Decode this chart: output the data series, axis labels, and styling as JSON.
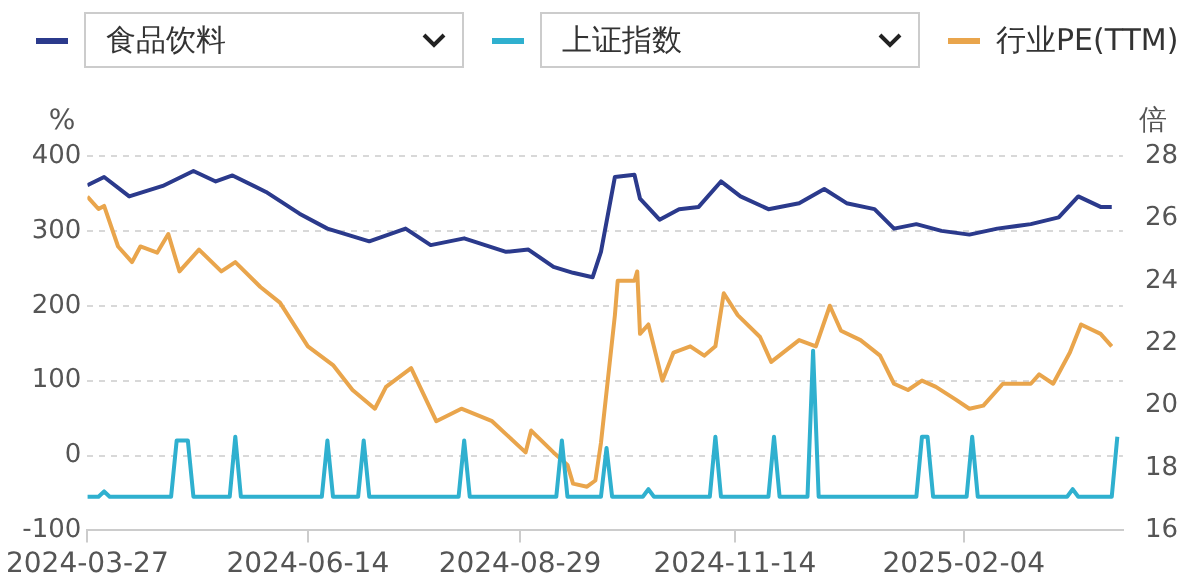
{
  "chart_data": {
    "type": "line",
    "ylabel": "%",
    "y2label": "倍",
    "xlim": [
      "2024-03-27",
      "2025-04-02"
    ],
    "xticks": [
      "2024-03-27",
      "2024-06-14",
      "2024-08-29",
      "2024-11-14",
      "2025-02-04"
    ],
    "ylim": [
      -100,
      400
    ],
    "yticks": [
      -100,
      0,
      100,
      200,
      300,
      400
    ],
    "y2lim": [
      16,
      28
    ],
    "y2ticks": [
      16,
      18,
      20,
      22,
      24,
      26,
      28
    ],
    "grid": "y",
    "legend": "top",
    "marker": "none",
    "line_style": "solid",
    "series": [
      {
        "name": "食品饮料",
        "color": "#2b3a8c",
        "x": [
          "2024-03-27",
          "2024-04-02",
          "2024-04-11",
          "2024-04-23",
          "2024-05-04",
          "2024-05-12",
          "2024-05-18",
          "2024-05-30",
          "2024-06-11",
          "2024-06-21",
          "2024-07-06",
          "2024-07-19",
          "2024-07-28",
          "2024-08-09",
          "2024-08-24",
          "2024-09-01",
          "2024-09-10",
          "2024-09-17",
          "2024-09-24",
          "2024-09-27",
          "2024-10-02",
          "2024-10-09",
          "2024-10-11",
          "2024-10-18",
          "2024-10-25",
          "2024-11-01",
          "2024-11-09",
          "2024-11-16",
          "2024-11-26",
          "2024-12-07",
          "2024-12-16",
          "2024-12-24",
          "2025-01-03",
          "2025-01-10",
          "2025-01-18",
          "2025-01-27",
          "2025-02-06",
          "2025-02-16",
          "2025-02-28",
          "2025-03-10",
          "2025-03-17",
          "2025-03-25",
          "2025-03-29"
        ],
        "values": [
          361,
          372,
          346,
          360,
          380,
          366,
          374,
          352,
          323,
          303,
          286,
          303,
          281,
          290,
          272,
          275,
          252,
          244,
          238,
          272,
          372,
          375,
          343,
          315,
          329,
          332,
          366,
          346,
          329,
          337,
          356,
          337,
          329,
          303,
          309,
          300,
          295,
          303,
          309,
          318,
          346,
          332,
          332
        ]
      },
      {
        "name": "上证指数",
        "color": "#2fb0cf",
        "x": [
          "2024-03-27",
          "2024-03-31",
          "2024-04-02",
          "2024-04-04",
          "2024-04-26",
          "2024-04-28",
          "2024-05-02",
          "2024-05-04",
          "2024-05-17",
          "2024-05-19",
          "2024-05-21",
          "2024-06-19",
          "2024-06-21",
          "2024-06-23",
          "2024-07-02",
          "2024-07-04",
          "2024-07-06",
          "2024-08-07",
          "2024-08-09",
          "2024-08-11",
          "2024-09-11",
          "2024-09-13",
          "2024-09-15",
          "2024-09-27",
          "2024-09-29",
          "2024-10-01",
          "2024-10-12",
          "2024-10-14",
          "2024-10-16",
          "2024-11-05",
          "2024-11-07",
          "2024-11-09",
          "2024-11-26",
          "2024-11-28",
          "2024-11-30",
          "2024-12-10",
          "2024-12-12",
          "2024-12-14",
          "2025-01-18",
          "2025-01-20",
          "2025-01-22",
          "2025-01-24",
          "2025-02-05",
          "2025-02-07",
          "2025-02-09",
          "2025-03-13",
          "2025-03-15",
          "2025-03-17",
          "2025-03-29",
          "2025-03-31"
        ],
        "values": [
          -55,
          -55,
          -48,
          -55,
          -55,
          20,
          20,
          -55,
          -55,
          25,
          -55,
          -55,
          20,
          -55,
          -55,
          20,
          -55,
          -55,
          20,
          -55,
          -55,
          20,
          -55,
          -55,
          10,
          -55,
          -55,
          -45,
          -55,
          -55,
          25,
          -55,
          -55,
          25,
          -55,
          -55,
          140,
          -55,
          -55,
          25,
          25,
          -55,
          -55,
          25,
          -55,
          -55,
          -45,
          -55,
          -55,
          25
        ]
      },
      {
        "name": "行业PE(TTM)",
        "color": "#e9a54c",
        "axis": "y2",
        "x": [
          "2024-03-27",
          "2024-03-31",
          "2024-04-02",
          "2024-04-07",
          "2024-04-12",
          "2024-04-15",
          "2024-04-21",
          "2024-04-25",
          "2024-04-29",
          "2024-05-06",
          "2024-05-14",
          "2024-05-19",
          "2024-05-28",
          "2024-06-04",
          "2024-06-14",
          "2024-06-23",
          "2024-06-30",
          "2024-07-08",
          "2024-07-12",
          "2024-07-21",
          "2024-07-30",
          "2024-08-08",
          "2024-08-19",
          "2024-08-31",
          "2024-09-02",
          "2024-09-10",
          "2024-09-15",
          "2024-09-17",
          "2024-09-22",
          "2024-09-25",
          "2024-09-27",
          "2024-10-02",
          "2024-10-03",
          "2024-10-09",
          "2024-10-10",
          "2024-10-11",
          "2024-10-14",
          "2024-10-19",
          "2024-10-23",
          "2024-10-29",
          "2024-11-03",
          "2024-11-07",
          "2024-11-10",
          "2024-11-15",
          "2024-11-23",
          "2024-11-27",
          "2024-12-07",
          "2024-12-13",
          "2024-12-18",
          "2024-12-22",
          "2024-12-29",
          "2025-01-05",
          "2025-01-10",
          "2025-01-15",
          "2025-01-20",
          "2025-01-25",
          "2025-02-01",
          "2025-02-06",
          "2025-02-11",
          "2025-02-18",
          "2025-02-28",
          "2025-03-03",
          "2025-03-08",
          "2025-03-14",
          "2025-03-18",
          "2025-03-25",
          "2025-03-29"
        ],
        "values": [
          26.7,
          26.3,
          26.4,
          25.1,
          24.6,
          25.1,
          24.9,
          25.5,
          24.3,
          25.0,
          24.3,
          24.6,
          23.8,
          23.3,
          21.9,
          21.3,
          20.5,
          19.9,
          20.6,
          21.2,
          19.5,
          19.9,
          19.5,
          18.5,
          19.2,
          18.5,
          18.1,
          17.5,
          17.4,
          17.6,
          18.8,
          22.9,
          24.0,
          24.0,
          24.3,
          22.3,
          22.6,
          20.8,
          21.7,
          21.9,
          21.6,
          21.9,
          23.6,
          22.9,
          22.2,
          21.4,
          22.1,
          21.9,
          23.2,
          22.4,
          22.1,
          21.6,
          20.7,
          20.5,
          20.8,
          20.6,
          20.2,
          19.9,
          20.0,
          20.7,
          20.7,
          21.0,
          20.7,
          21.7,
          22.6,
          22.3,
          21.9
        ]
      }
    ]
  }
}
